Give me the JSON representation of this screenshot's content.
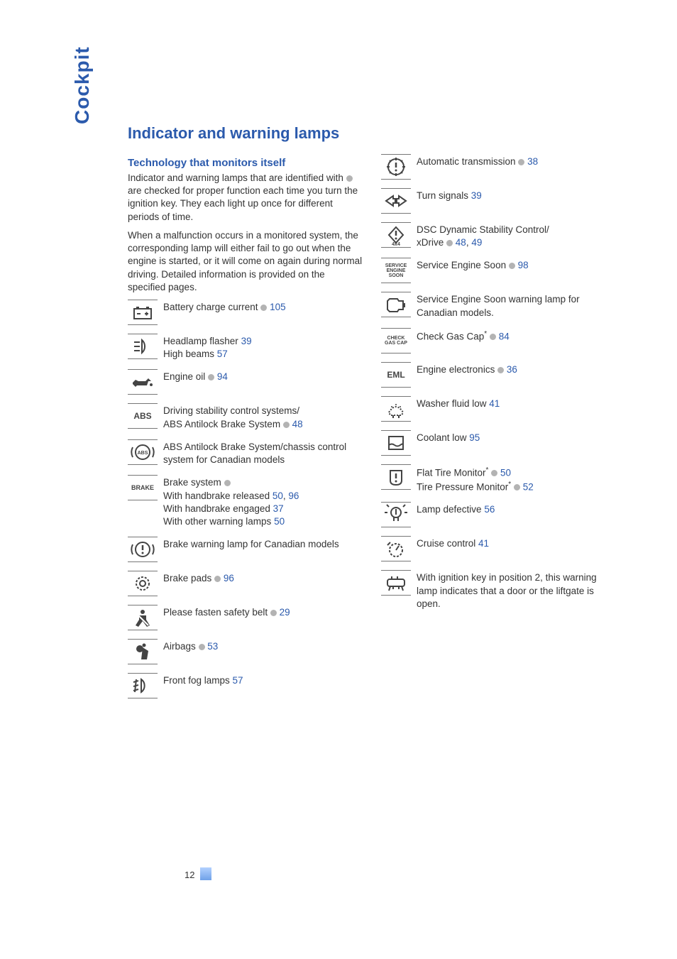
{
  "tab": "Cockpit",
  "title": "Indicator and warning lamps",
  "subtitle": "Technology that monitors itself",
  "intro1_a": "Indicator and warning lamps that are identified with ",
  "intro1_b": " are checked for proper function each time you turn the ignition key. They each light up once for different periods of time.",
  "intro2": "When a malfunction occurs in a monitored system, the corresponding lamp will either fail to go out when the engine is started, or it will come on again during normal driving. Detailed information is provided on the specified pages.",
  "left": [
    {
      "icon": "battery",
      "text": "Battery charge current ",
      "dot": true,
      "refs": [
        "105"
      ]
    },
    {
      "icon": "headlamp",
      "lines": [
        {
          "t": "Headlamp flasher   ",
          "refs": [
            "39"
          ]
        },
        {
          "t": "High beams   ",
          "refs": [
            "57"
          ]
        }
      ]
    },
    {
      "icon": "oil",
      "text": "Engine oil ",
      "dot": true,
      "refs": [
        "94"
      ]
    },
    {
      "icon": "abs",
      "word": "ABS",
      "lines": [
        {
          "t": "Driving stability control systems/",
          "refs": []
        },
        {
          "t": "ABS Antilock Brake System ",
          "dot": true,
          "refs": [
            "48"
          ]
        }
      ]
    },
    {
      "icon": "abs-circle",
      "text": "ABS Antilock Brake System/chassis control system for Canadian models"
    },
    {
      "icon": "brake",
      "word": "BRAKE",
      "lines": [
        {
          "t": "Brake system ",
          "dot": true,
          "refs": []
        },
        {
          "t": "With handbrake released   ",
          "refs": [
            "50",
            "96"
          ]
        },
        {
          "t": "With handbrake engaged   ",
          "refs": [
            "37"
          ]
        },
        {
          "t": "With other warning lamps   ",
          "refs": [
            "50"
          ]
        }
      ]
    },
    {
      "icon": "circle-excl",
      "text": "Brake warning lamp for Canadian models"
    },
    {
      "icon": "brakepads",
      "text": "Brake pads ",
      "dot": true,
      "refs": [
        "96"
      ]
    },
    {
      "icon": "seatbelt",
      "text": "Please fasten safety belt ",
      "dot": true,
      "refs": [
        "29"
      ]
    },
    {
      "icon": "airbag",
      "text": "Airbags ",
      "dot": true,
      "refs": [
        "53"
      ]
    },
    {
      "icon": "foglamp",
      "text": "Front fog lamps   ",
      "refs": [
        "57"
      ]
    }
  ],
  "right": [
    {
      "icon": "gear-excl",
      "text": "Automatic transmission ",
      "dot": true,
      "refs": [
        "38"
      ]
    },
    {
      "icon": "turn",
      "text": "Turn signals   ",
      "refs": [
        "39"
      ]
    },
    {
      "icon": "dsc",
      "sub": "4x4",
      "lines": [
        {
          "t": "DSC Dynamic Stability Control/",
          "refs": []
        },
        {
          "t": "xDrive ",
          "dot": true,
          "refs": [
            "48",
            "49"
          ]
        }
      ]
    },
    {
      "icon": "ses",
      "wordlines": [
        "SERVICE",
        "ENGINE",
        "SOON"
      ],
      "text": "Service Engine Soon ",
      "dot": true,
      "refs": [
        "98"
      ]
    },
    {
      "icon": "ses-can",
      "text": "Service Engine Soon warning lamp for Canadian models."
    },
    {
      "icon": "gascap",
      "wordlines": [
        "CHECK",
        "GAS CAP"
      ],
      "text": "Check Gas Cap",
      "star": true,
      "dot": true,
      "refs": [
        "84"
      ]
    },
    {
      "icon": "eml",
      "word": "EML",
      "text": "Engine electronics ",
      "dot": true,
      "refs": [
        "36"
      ]
    },
    {
      "icon": "washer",
      "text": "Washer fluid low   ",
      "refs": [
        "41"
      ]
    },
    {
      "icon": "coolant",
      "text": "Coolant low   ",
      "refs": [
        "95"
      ]
    },
    {
      "icon": "flattire",
      "lines": [
        {
          "t": "Flat Tire Monitor",
          "star": true,
          "dot": true,
          "refs": [
            "50"
          ]
        },
        {
          "t": "Tire Pressure Monitor",
          "star": true,
          "dot": true,
          "refs": [
            "52"
          ]
        }
      ]
    },
    {
      "icon": "lamp",
      "text": "Lamp defective   ",
      "refs": [
        "56"
      ]
    },
    {
      "icon": "cruise",
      "text": "Cruise control   ",
      "refs": [
        "41"
      ]
    },
    {
      "icon": "door",
      "text": "With ignition key in position 2, this warning lamp indicates that a door or the liftgate is open."
    }
  ],
  "page": "12",
  "colors": {
    "link": "#2b5aac",
    "text": "#333333",
    "dot": "#b3b3b3",
    "border": "#777777"
  }
}
